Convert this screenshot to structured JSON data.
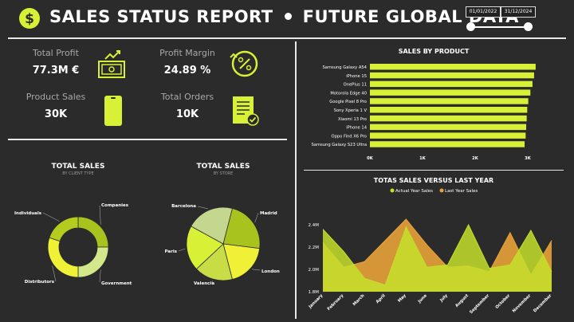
{
  "header": {
    "title_left": "SALES STATUS REPORT",
    "title_right": "FUTURE GLOBAL DATA",
    "date_start": "01/01/2022",
    "date_end": "31/12/2024",
    "logo_icon": "dollar-coin-icon"
  },
  "colors": {
    "accent": "#d8f035",
    "background": "#2b2b2b",
    "orange": "#e8a23a",
    "gold": "#d4b03a"
  },
  "kpis": {
    "total_profit": {
      "label": "Total Profit",
      "value": "77.3M €",
      "icon": "cash-register-icon"
    },
    "profit_margin": {
      "label": "Profit Margin",
      "value": "24.89 %",
      "icon": "percent-coin-icon"
    },
    "product_sales": {
      "label": "Product Sales",
      "value": "30K",
      "icon": "smartphone-icon"
    },
    "total_orders": {
      "label": "Total Orders",
      "value": "10K",
      "icon": "clipboard-check-icon"
    }
  },
  "chart_data": [
    {
      "type": "bar",
      "orientation": "horizontal",
      "title": "SALES BY PRODUCT",
      "categories": [
        "Samsung Galaxy A54",
        "iPhone 15",
        "OnePlus 11",
        "Motorola Edge 40",
        "Google Pixel 8 Pro",
        "Sony Xperia 1 V",
        "Xiaomi 13 Pro",
        "iPhone 14",
        "Oppo Find X6 Pro",
        "Samsung Galaxy S23 Ultra"
      ],
      "values": [
        3150,
        3120,
        3090,
        3050,
        3010,
        2990,
        2980,
        2970,
        2960,
        2940
      ],
      "xlim": [
        0,
        3000
      ],
      "xticks": [
        "0K",
        "1K",
        "2K",
        "3K"
      ],
      "color": "#d8f035"
    },
    {
      "type": "pie",
      "donut": true,
      "title": "TOTAL SALES",
      "subtitle": "BY CLIENT TYPE",
      "labels": [
        "Companies",
        "Government",
        "Distributors",
        "Individuals"
      ],
      "values": [
        25,
        25,
        30,
        20
      ],
      "colors": [
        "#a8c21e",
        "#d3e88a",
        "#f0f036",
        "#b3cc1e"
      ]
    },
    {
      "type": "pie",
      "title": "TOTAL SALES",
      "subtitle": "BY STORE",
      "labels": [
        "Madrid",
        "London",
        "Valencia",
        "Paris",
        "Barcelona"
      ],
      "values": [
        23,
        19,
        17,
        20,
        21
      ],
      "colors": [
        "#a8c21e",
        "#f0f036",
        "#c8dc46",
        "#d8f035",
        "#c5d68e"
      ]
    },
    {
      "type": "area",
      "title": "TOTAS SALES VERSUS LAST YEAR",
      "categories": [
        "January",
        "February",
        "March",
        "April",
        "May",
        "June",
        "July",
        "August",
        "September",
        "October",
        "November",
        "December"
      ],
      "series": [
        {
          "name": "Actual Year Sales",
          "values": [
            2.36,
            2.16,
            1.92,
            1.86,
            2.38,
            2.02,
            2.04,
            2.4,
            2.01,
            2.04,
            2.35,
            1.98
          ],
          "color": "#c4e02a"
        },
        {
          "name": "Last Year Sales",
          "values": [
            2.24,
            2.02,
            2.07,
            2.26,
            2.45,
            2.22,
            2.02,
            2.03,
            1.98,
            2.33,
            1.95,
            2.26
          ],
          "color": "#e8a23a"
        }
      ],
      "ylim": [
        1.8,
        2.5
      ],
      "yticks": [
        "1.8M",
        "2.0M",
        "2.2M",
        "2.4M"
      ],
      "legend_position": "top"
    }
  ]
}
